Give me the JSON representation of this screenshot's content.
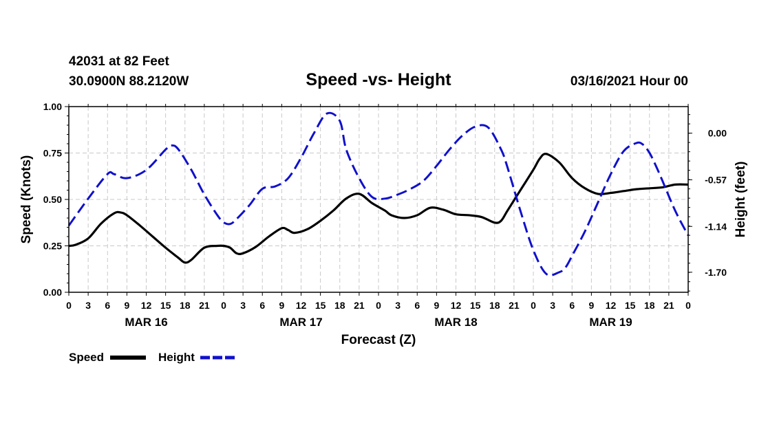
{
  "header": {
    "station": "42031 at 82 Feet",
    "location": "30.0900N 88.2120W",
    "title": "Speed -vs- Height",
    "datetime": "03/16/2021 Hour 00"
  },
  "chart_data": {
    "type": "line",
    "title": "Speed -vs- Height",
    "xlabel": "Forecast (Z)",
    "ylabel_left": "Speed (Knots)",
    "ylabel_right": "Height (feet)",
    "x_unit": "hours from 03/16/2021 00Z",
    "xlim": [
      0,
      96
    ],
    "ylim_left": [
      0,
      1.0
    ],
    "ylim_right": [
      -1.945,
      0.325
    ],
    "grid": true,
    "x_tick_labels": [
      "0",
      "3",
      "6",
      "9",
      "12",
      "15",
      "18",
      "21",
      "0",
      "3",
      "6",
      "9",
      "12",
      "15",
      "18",
      "21",
      "0",
      "3",
      "6",
      "9",
      "12",
      "15",
      "18",
      "21",
      "0",
      "3",
      "6",
      "9",
      "12",
      "15",
      "18",
      "21",
      "0"
    ],
    "day_labels": [
      {
        "hour": 12,
        "label": "MAR 16"
      },
      {
        "hour": 36,
        "label": "MAR 17"
      },
      {
        "hour": 60,
        "label": "MAR 18"
      },
      {
        "hour": 84,
        "label": "MAR 19"
      }
    ],
    "y_left_ticks": [
      "0.00",
      "0.25",
      "0.50",
      "0.75",
      "1.00"
    ],
    "y_right_ticks": [
      {
        "value": 0.0,
        "label": "0.00"
      },
      {
        "value": -0.57,
        "label": "-0.57"
      },
      {
        "value": -1.14,
        "label": "-1.14"
      },
      {
        "value": -1.7,
        "label": "-1.70"
      }
    ],
    "series": [
      {
        "name": "Speed",
        "axis": "left",
        "color": "#000000",
        "style": "solid",
        "x": [
          0,
          1,
          3,
          5,
          7,
          8,
          9,
          11,
          13,
          15,
          17,
          18,
          19,
          21,
          23,
          24,
          25,
          26,
          27,
          29,
          31,
          33,
          34,
          35,
          37,
          39,
          41,
          43,
          45,
          47,
          49,
          50,
          52,
          54,
          56,
          58,
          60,
          62,
          64,
          66,
          67,
          68,
          70,
          72,
          73,
          74,
          76,
          78,
          80,
          82,
          84,
          86,
          88,
          90,
          92,
          94,
          96
        ],
        "values": [
          0.25,
          0.255,
          0.29,
          0.37,
          0.425,
          0.43,
          0.415,
          0.36,
          0.3,
          0.24,
          0.185,
          0.16,
          0.175,
          0.24,
          0.25,
          0.25,
          0.24,
          0.21,
          0.21,
          0.245,
          0.3,
          0.345,
          0.335,
          0.32,
          0.34,
          0.385,
          0.44,
          0.505,
          0.53,
          0.48,
          0.44,
          0.415,
          0.4,
          0.415,
          0.455,
          0.445,
          0.42,
          0.415,
          0.405,
          0.375,
          0.385,
          0.44,
          0.55,
          0.66,
          0.72,
          0.745,
          0.7,
          0.615,
          0.56,
          0.53,
          0.535,
          0.545,
          0.555,
          0.56,
          0.565,
          0.58,
          0.58
        ]
      },
      {
        "name": "Height",
        "axis": "right",
        "color": "#1010cc",
        "style": "dashed",
        "x": [
          0,
          3,
          6,
          7,
          9,
          12,
          15,
          16,
          17,
          19,
          21,
          23,
          24,
          25,
          26,
          28,
          30,
          32,
          34,
          36,
          38,
          40,
          42,
          43,
          45,
          47,
          49,
          51,
          53,
          55,
          57,
          59,
          61,
          63,
          65,
          67,
          68,
          70,
          72,
          74,
          76,
          77,
          78,
          80,
          82,
          84,
          86,
          88,
          89,
          90,
          91,
          92,
          94,
          96
        ],
        "values": [
          -1.13,
          -0.8,
          -0.5,
          -0.5,
          -0.55,
          -0.45,
          -0.2,
          -0.15,
          -0.2,
          -0.45,
          -0.75,
          -1.0,
          -1.09,
          -1.11,
          -1.05,
          -0.88,
          -0.68,
          -0.65,
          -0.55,
          -0.3,
          0.0,
          0.24,
          0.15,
          -0.2,
          -0.55,
          -0.78,
          -0.8,
          -0.75,
          -0.68,
          -0.58,
          -0.4,
          -0.2,
          -0.03,
          0.08,
          0.07,
          -0.2,
          -0.42,
          -0.95,
          -1.43,
          -1.72,
          -1.7,
          -1.64,
          -1.5,
          -1.2,
          -0.85,
          -0.5,
          -0.22,
          -0.12,
          -0.14,
          -0.24,
          -0.4,
          -0.58,
          -0.95,
          -1.25
        ]
      }
    ]
  },
  "legend": [
    {
      "name": "Speed",
      "color": "#000000",
      "style": "solid"
    },
    {
      "name": "Height",
      "color": "#1010cc",
      "style": "dashed"
    }
  ]
}
